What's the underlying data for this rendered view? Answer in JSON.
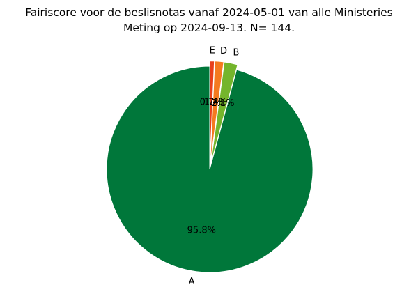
{
  "chart_data": {
    "type": "pie",
    "title_line1": "Fairiscore voor de beslisnotas vanaf 2024-05-01 van alle Ministeries",
    "title_line2": "Meting op 2024-09-13. N= 144.",
    "categories": [
      "A",
      "B",
      "D",
      "E"
    ],
    "values": [
      95.8,
      2.1,
      1.4,
      0.7
    ],
    "percent_labels": [
      "95.8%",
      "2.1%",
      "1.4%",
      "0.7%"
    ],
    "colors": [
      "#00773a",
      "#74b52c",
      "#f47a20",
      "#e8401c"
    ],
    "start_angle_deg": 90,
    "direction": "counterclockwise",
    "explode": [
      0,
      0.05,
      0.05,
      0.05
    ],
    "legend": "none"
  }
}
